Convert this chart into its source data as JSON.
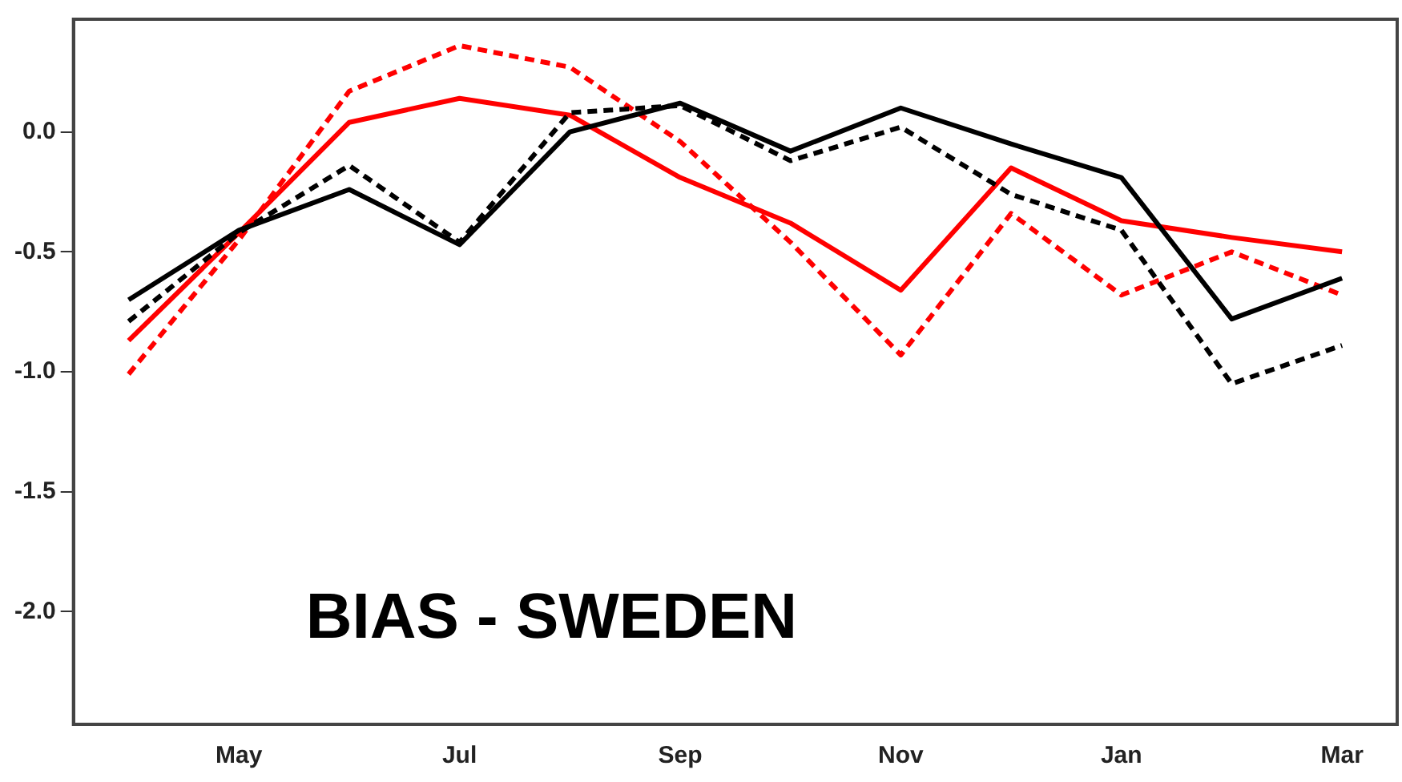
{
  "chart_data": {
    "type": "line",
    "categories": [
      null,
      "May",
      null,
      "Jul",
      null,
      "Sep",
      null,
      "Nov",
      null,
      "Jan",
      null,
      "Mar"
    ],
    "series": [
      {
        "color": "#000000",
        "line_style": "solid",
        "values": [
          -0.7,
          -0.41,
          -0.24,
          -0.47,
          0.0,
          0.12,
          -0.08,
          0.1,
          -0.05,
          -0.19,
          -0.78,
          -0.61
        ]
      },
      {
        "color": "#000000",
        "line_style": "dashed",
        "values": [
          -0.79,
          -0.42,
          -0.14,
          -0.46,
          0.08,
          0.11,
          -0.12,
          0.02,
          -0.26,
          -0.41,
          -1.05,
          -0.89
        ]
      },
      {
        "color": "#ff0000",
        "line_style": "solid",
        "values": [
          -0.87,
          -0.42,
          0.04,
          0.14,
          0.07,
          -0.19,
          -0.38,
          -0.66,
          -0.15,
          -0.37,
          -0.44,
          -0.5
        ]
      },
      {
        "color": "#ff0000",
        "line_style": "dashed",
        "values": [
          -1.01,
          -0.45,
          0.17,
          0.36,
          0.27,
          -0.04,
          -0.46,
          -0.93,
          -0.34,
          -0.68,
          -0.5,
          -0.68
        ]
      }
    ],
    "ylim": [
      -2.47,
      0.47
    ],
    "yticks": [
      {
        "value": 0,
        "label": "0.0"
      },
      {
        "value": -0.5,
        "label": "-0.5"
      },
      {
        "value": -1,
        "label": "-1.0"
      },
      {
        "value": -1.5,
        "label": "-1.5"
      },
      {
        "value": -2,
        "label": "-2.0"
      }
    ],
    "annotations": [
      "BIAS - SWEDEN"
    ],
    "grid": false,
    "legend": false,
    "marker": "none"
  }
}
